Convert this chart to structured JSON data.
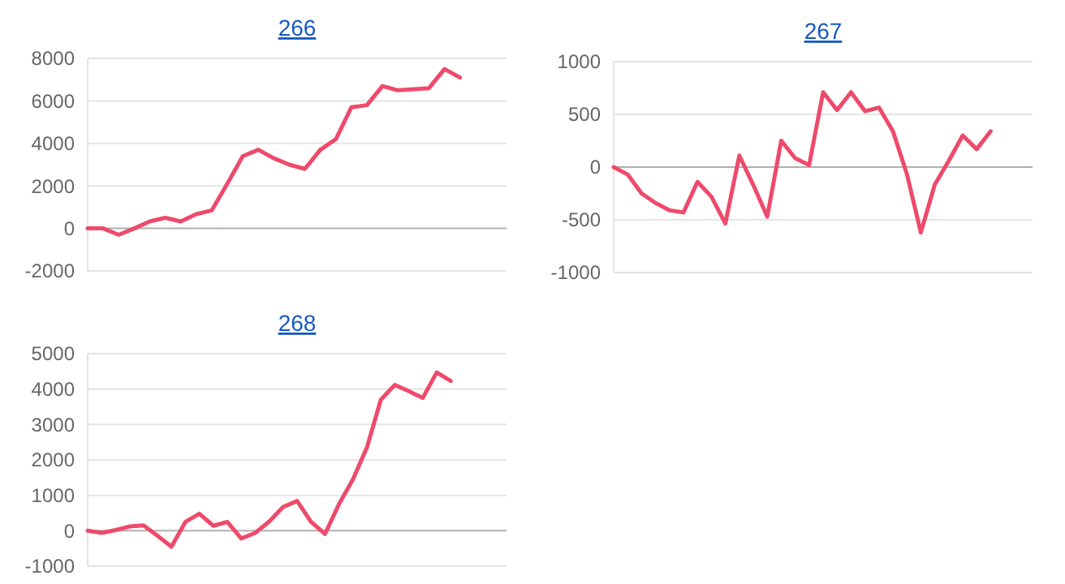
{
  "chart_data": [
    {
      "type": "line",
      "title": "266",
      "categories": [
        null,
        null,
        null,
        null,
        null,
        null,
        null,
        null,
        null,
        null,
        null,
        null,
        null,
        null,
        null,
        null,
        null,
        null,
        null,
        null,
        null,
        null,
        null,
        null,
        null,
        null,
        null,
        null
      ],
      "series": [
        {
          "color": "#ee4a6b",
          "values": [
            0,
            0,
            -300,
            0,
            330,
            500,
            330,
            670,
            850,
            2100,
            3400,
            3700,
            3300,
            3000,
            2800,
            3700,
            4200,
            5700,
            5800,
            6700,
            6500,
            6550,
            6600,
            7500,
            7100,
            null,
            null,
            null
          ]
        }
      ],
      "ylim": [
        -2000,
        8000
      ],
      "yticks": [
        -2000,
        0,
        2000,
        4000,
        6000,
        8000
      ],
      "grid": "y",
      "tick_labels": "y"
    },
    {
      "type": "line",
      "title": "267",
      "categories": [
        null,
        null,
        null,
        null,
        null,
        null,
        null,
        null,
        null,
        null,
        null,
        null,
        null,
        null,
        null,
        null,
        null,
        null,
        null,
        null,
        null,
        null,
        null,
        null,
        null,
        null,
        null,
        null,
        null,
        null,
        null
      ],
      "series": [
        {
          "color": "#ee4a6b",
          "values": [
            0,
            -70,
            -250,
            -340,
            -410,
            -430,
            -140,
            -280,
            -535,
            110,
            -170,
            -470,
            250,
            85,
            20,
            710,
            540,
            710,
            530,
            565,
            340,
            -65,
            -620,
            -165,
            60,
            300,
            170,
            340,
            null,
            null,
            null
          ]
        }
      ],
      "ylim": [
        -1000,
        1000
      ],
      "yticks": [
        -1000,
        -500,
        0,
        500,
        1000
      ],
      "grid": "y",
      "tick_labels": "y"
    },
    {
      "type": "line",
      "title": "268",
      "categories": [
        null,
        null,
        null,
        null,
        null,
        null,
        null,
        null,
        null,
        null,
        null,
        null,
        null,
        null,
        null,
        null,
        null,
        null,
        null,
        null,
        null,
        null,
        null,
        null,
        null,
        null,
        null,
        null,
        null,
        null,
        null
      ],
      "series": [
        {
          "color": "#ee4a6b",
          "values": [
            0,
            -60,
            20,
            120,
            150,
            -140,
            -450,
            250,
            480,
            140,
            250,
            -220,
            -60,
            260,
            670,
            840,
            250,
            -90,
            750,
            1450,
            2350,
            3700,
            4120,
            3940,
            3750,
            4470,
            4230,
            null,
            null,
            null,
            null
          ]
        }
      ],
      "ylim": [
        -1000,
        5000
      ],
      "yticks": [
        -1000,
        0,
        1000,
        2000,
        3000,
        4000,
        5000
      ],
      "grid": "y",
      "tick_labels": "y"
    }
  ]
}
